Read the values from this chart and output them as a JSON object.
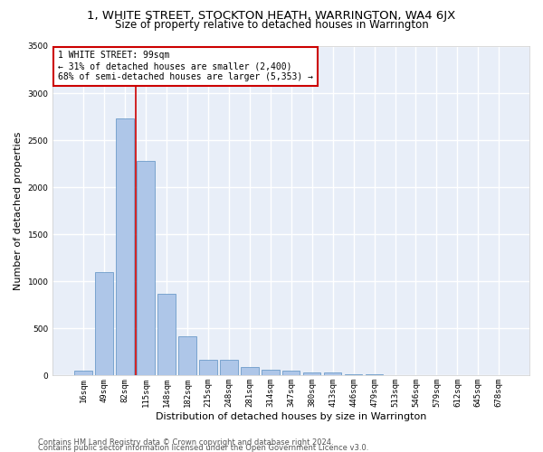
{
  "title1": "1, WHITE STREET, STOCKTON HEATH, WARRINGTON, WA4 6JX",
  "title2": "Size of property relative to detached houses in Warrington",
  "xlabel": "Distribution of detached houses by size in Warrington",
  "ylabel": "Number of detached properties",
  "categories": [
    "16sqm",
    "49sqm",
    "82sqm",
    "115sqm",
    "148sqm",
    "182sqm",
    "215sqm",
    "248sqm",
    "281sqm",
    "314sqm",
    "347sqm",
    "380sqm",
    "413sqm",
    "446sqm",
    "479sqm",
    "513sqm",
    "546sqm",
    "579sqm",
    "612sqm",
    "645sqm",
    "678sqm"
  ],
  "values": [
    55,
    1100,
    2730,
    2280,
    870,
    415,
    170,
    170,
    95,
    65,
    50,
    35,
    30,
    10,
    10,
    0,
    0,
    0,
    0,
    0,
    0
  ],
  "bar_color": "#aec6e8",
  "bar_edge_color": "#5a8fc2",
  "bg_color": "#e8eef8",
  "grid_color": "#ffffff",
  "property_line_x": 2.5,
  "annotation_text": "1 WHITE STREET: 99sqm\n← 31% of detached houses are smaller (2,400)\n68% of semi-detached houses are larger (5,353) →",
  "annotation_box_color": "#ffffff",
  "annotation_box_edge": "#cc0000",
  "red_line_color": "#cc0000",
  "footer1": "Contains HM Land Registry data © Crown copyright and database right 2024.",
  "footer2": "Contains public sector information licensed under the Open Government Licence v3.0.",
  "ylim": [
    0,
    3500
  ],
  "title1_fontsize": 9.5,
  "title2_fontsize": 8.5,
  "xlabel_fontsize": 8,
  "ylabel_fontsize": 8,
  "tick_fontsize": 6.5,
  "footer_fontsize": 6,
  "annot_fontsize": 7
}
